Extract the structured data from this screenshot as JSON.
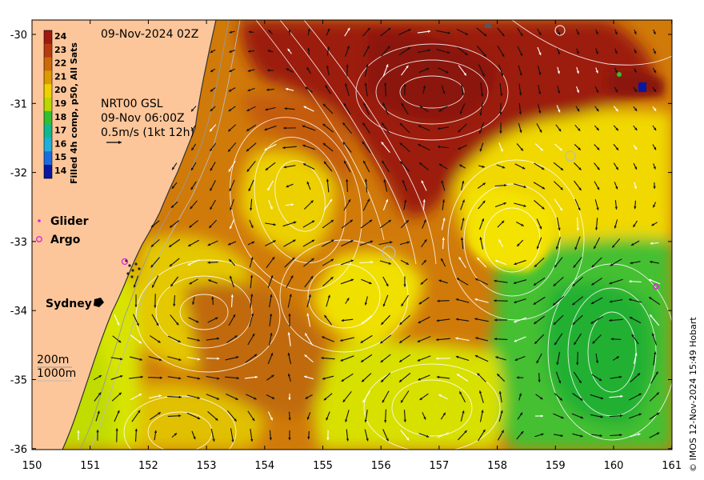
{
  "map": {
    "date_label": "09-Nov-2024 02Z",
    "current_info": [
      "NRT00 GSL",
      "09-Nov 06:00Z",
      "0.5m/s (1kt 12h)"
    ],
    "colorbar_title": "Filled 4h comp, p50, All Sats",
    "colorbar_ticks": [
      "24",
      "23",
      "22",
      "21",
      "20",
      "19",
      "18",
      "17",
      "16",
      "15",
      "14"
    ],
    "colorbar_colors": [
      "#a01a10",
      "#b83a10",
      "#cc6a08",
      "#dd9a00",
      "#f0d000",
      "#b8d800",
      "#30c030",
      "#10b890",
      "#20b0d8",
      "#1c6ce0",
      "#0818a0"
    ],
    "legend": {
      "glider_label": "Glider",
      "argo_label": "Argo"
    },
    "city_label": "Sydney",
    "depth_labels": [
      "200m",
      "1000m"
    ],
    "credit": "© IMOS 12-Nov-2024 15:49 Hobart",
    "x_ticks": [
      "150",
      "151",
      "152",
      "153",
      "154",
      "155",
      "156",
      "157",
      "158",
      "159",
      "160",
      "161"
    ],
    "y_ticks": [
      "-30",
      "-31",
      "-32",
      "-33",
      "-34",
      "-35",
      "-36"
    ],
    "colors": {
      "land": "#fcc69a",
      "sst_warm": "#9c1a0e",
      "sst_mid": "#cc6a08",
      "sst_yellow": "#f0e000",
      "sst_green": "#40c030",
      "glider": "#e020e0",
      "argo": "#e020e0"
    }
  }
}
